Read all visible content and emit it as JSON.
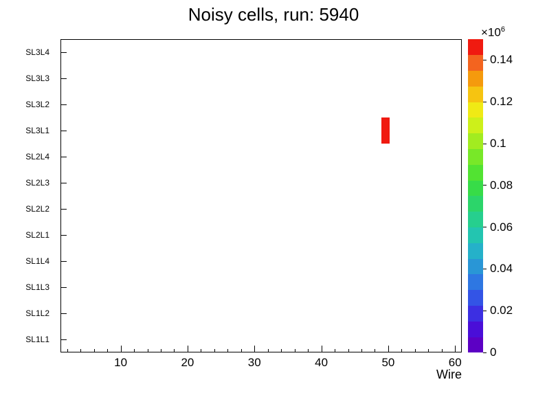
{
  "chart_data": {
    "type": "heatmap",
    "title": "Noisy cells, run: 5940",
    "xlabel": "Wire",
    "x_range": [
      1,
      61
    ],
    "x_major_ticks": [
      10,
      20,
      30,
      40,
      50,
      60
    ],
    "x_minor_tick_step": 2,
    "y_categories_bottom_to_top": [
      "SL1L1",
      "SL1L2",
      "SL1L3",
      "SL1L4",
      "SL2L1",
      "SL2L2",
      "SL2L3",
      "SL2L4",
      "SL3L1",
      "SL3L2",
      "SL3L3",
      "SL3L4"
    ],
    "grid": false,
    "legend_position": "none",
    "cells": [
      {
        "wire": 49,
        "layer": "SL3L1",
        "value": 150000,
        "value_in_scale_units": 0.15
      }
    ],
    "colorbar": {
      "position": "right",
      "scale_label_base": "×10",
      "scale_label_exponent": "6",
      "range": [
        0,
        0.15
      ],
      "tick_values": [
        0,
        0.02,
        0.04,
        0.06,
        0.08,
        0.1,
        0.12,
        0.14
      ],
      "tick_labels": [
        "0",
        "0.02",
        "0.04",
        "0.06",
        "0.08",
        "0.1",
        "0.12",
        "0.14"
      ],
      "palette_bottom_to_top": [
        "#5c00c4",
        "#4a0ed8",
        "#3c2fe2",
        "#3354e6",
        "#2e77e2",
        "#2996d6",
        "#25b1c9",
        "#23c5b0",
        "#26cf8e",
        "#2cd56a",
        "#37dc48",
        "#52e332",
        "#78e828",
        "#a2ec20",
        "#cdf01a",
        "#f0ea15",
        "#f6c411",
        "#f59a0d",
        "#f3641f",
        "#f01a10"
      ]
    }
  }
}
